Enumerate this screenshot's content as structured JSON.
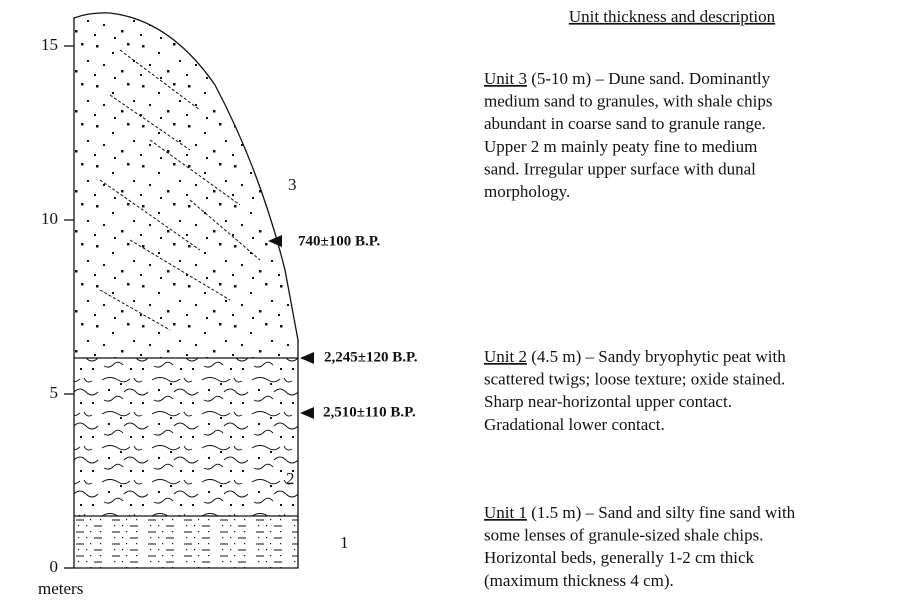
{
  "axis": {
    "label": "meters",
    "ticks": [
      0,
      5,
      10,
      15
    ]
  },
  "units": [
    "1",
    "2",
    "3"
  ],
  "dates": [
    "740±100 B.P.",
    "2,245±120 B.P.",
    "2,510±110 B.P."
  ],
  "description": {
    "title": "Unit thickness and description",
    "units": [
      {
        "name": "Unit 3",
        "lines": [
          " (5-10 m) – Dune sand. Dominantly",
          "medium sand to granules, with shale chips",
          "abundant in coarse sand to granule range.",
          "Upper 2 m mainly peaty fine to medium",
          "sand. Irregular upper surface with dunal",
          "morphology."
        ]
      },
      {
        "name": "Unit 2",
        "lines": [
          " (4.5 m) – Sandy bryophytic peat with",
          "scattered twigs; loose texture; oxide stained.",
          "Sharp near-horizontal upper contact.",
          "Gradational lower contact."
        ]
      },
      {
        "name": "Unit 1",
        "lines": [
          " (1.5 m) – Sand and silty fine sand with",
          "some lenses of granule-sized shale chips.",
          "Horizontal beds, generally 1-2 cm thick",
          "(maximum thickness 4 cm)."
        ]
      }
    ]
  }
}
